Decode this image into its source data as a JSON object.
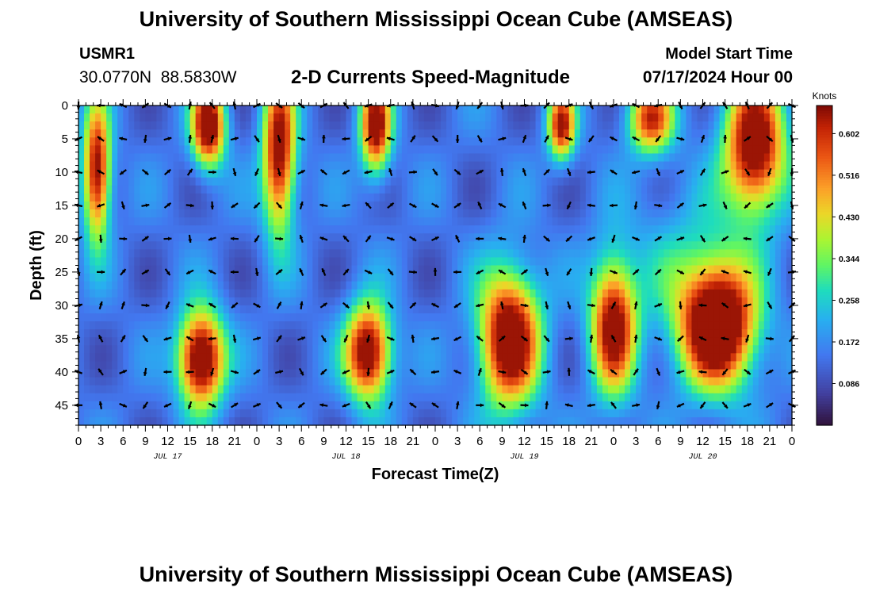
{
  "header": {
    "title": "University of Southern Mississippi Ocean Cube (AMSEAS)",
    "station_id": "USMR1",
    "station_coords": "30.0770N  88.5830W",
    "plot_title": "2-D Currents Speed-Magnitude",
    "model_start_label": "Model Start Time",
    "model_start_value": "07/17/2024 Hour 00"
  },
  "footer": {
    "title": "University of Southern Mississippi Ocean Cube (AMSEAS)"
  },
  "chart_data": {
    "type": "heatmap",
    "title": "2-D Currents Speed-Magnitude",
    "xlabel": "Forecast Time(Z)",
    "ylabel": "Depth (ft)",
    "x_tick_labels": [
      "0",
      "3",
      "6",
      "9",
      "12",
      "15",
      "18",
      "21",
      "0",
      "3",
      "6",
      "9",
      "12",
      "15",
      "18",
      "21",
      "0",
      "3",
      "6",
      "9",
      "12",
      "15",
      "18",
      "21",
      "0",
      "3",
      "6",
      "9",
      "12",
      "15",
      "18",
      "21",
      "0"
    ],
    "x_range_hours": [
      0,
      96
    ],
    "day_labels": [
      {
        "label": "JUL 17",
        "hour": 12
      },
      {
        "label": "JUL 18",
        "hour": 36
      },
      {
        "label": "JUL 19",
        "hour": 60
      },
      {
        "label": "JUL 20",
        "hour": 84
      }
    ],
    "y_ticks": [
      0,
      5,
      10,
      15,
      20,
      25,
      30,
      35,
      40,
      45
    ],
    "y_range_ft": [
      0,
      48
    ],
    "y_inverted": true,
    "colorbar": {
      "unit": "Knots",
      "ticks": [
        0.602,
        0.516,
        0.43,
        0.344,
        0.258,
        0.172,
        0.086
      ],
      "tick_labels": [
        "0.602",
        "0.516",
        "0.430",
        "0.344",
        "0.258",
        "0.172",
        "0.086"
      ],
      "range": [
        0.0,
        0.66
      ]
    },
    "blobs": [
      {
        "t": 2.5,
        "d": 10,
        "st": 1.8,
        "sd": 10,
        "a": 0.55
      },
      {
        "t": 17.5,
        "d": 3,
        "st": 2.2,
        "sd": 6,
        "a": 0.6
      },
      {
        "t": 27,
        "d": 7,
        "st": 2.2,
        "sd": 12,
        "a": 0.55
      },
      {
        "t": 40,
        "d": 3,
        "st": 2.0,
        "sd": 7,
        "a": 0.55
      },
      {
        "t": 65,
        "d": 3,
        "st": 1.8,
        "sd": 5,
        "a": 0.5
      },
      {
        "t": 77,
        "d": 2,
        "st": 3.0,
        "sd": 5,
        "a": 0.45
      },
      {
        "t": 91,
        "d": 6,
        "st": 4.0,
        "sd": 10,
        "a": 0.6
      },
      {
        "t": 16.5,
        "d": 38,
        "st": 3.0,
        "sd": 7,
        "a": 0.65
      },
      {
        "t": 39,
        "d": 37,
        "st": 3.0,
        "sd": 7,
        "a": 0.6
      },
      {
        "t": 58,
        "d": 35,
        "st": 4.0,
        "sd": 10,
        "a": 0.62
      },
      {
        "t": 72,
        "d": 33,
        "st": 3.0,
        "sd": 10,
        "a": 0.55
      },
      {
        "t": 86,
        "d": 33,
        "st": 5.0,
        "sd": 9,
        "a": 0.7
      },
      {
        "t": 82,
        "d": 24,
        "st": 8.0,
        "sd": 12,
        "a": 0.1
      }
    ],
    "arrow_columns_hours": [
      0,
      3,
      6,
      9,
      12,
      15,
      18,
      21,
      24,
      27,
      30,
      33,
      36,
      39,
      42,
      45,
      48,
      51,
      54,
      57,
      60,
      63,
      66,
      69,
      72,
      75,
      78,
      81,
      84,
      87,
      90,
      93,
      96
    ],
    "arrow_rows_ft": [
      0,
      5,
      10,
      15,
      20,
      25,
      30,
      35,
      40,
      45
    ]
  }
}
